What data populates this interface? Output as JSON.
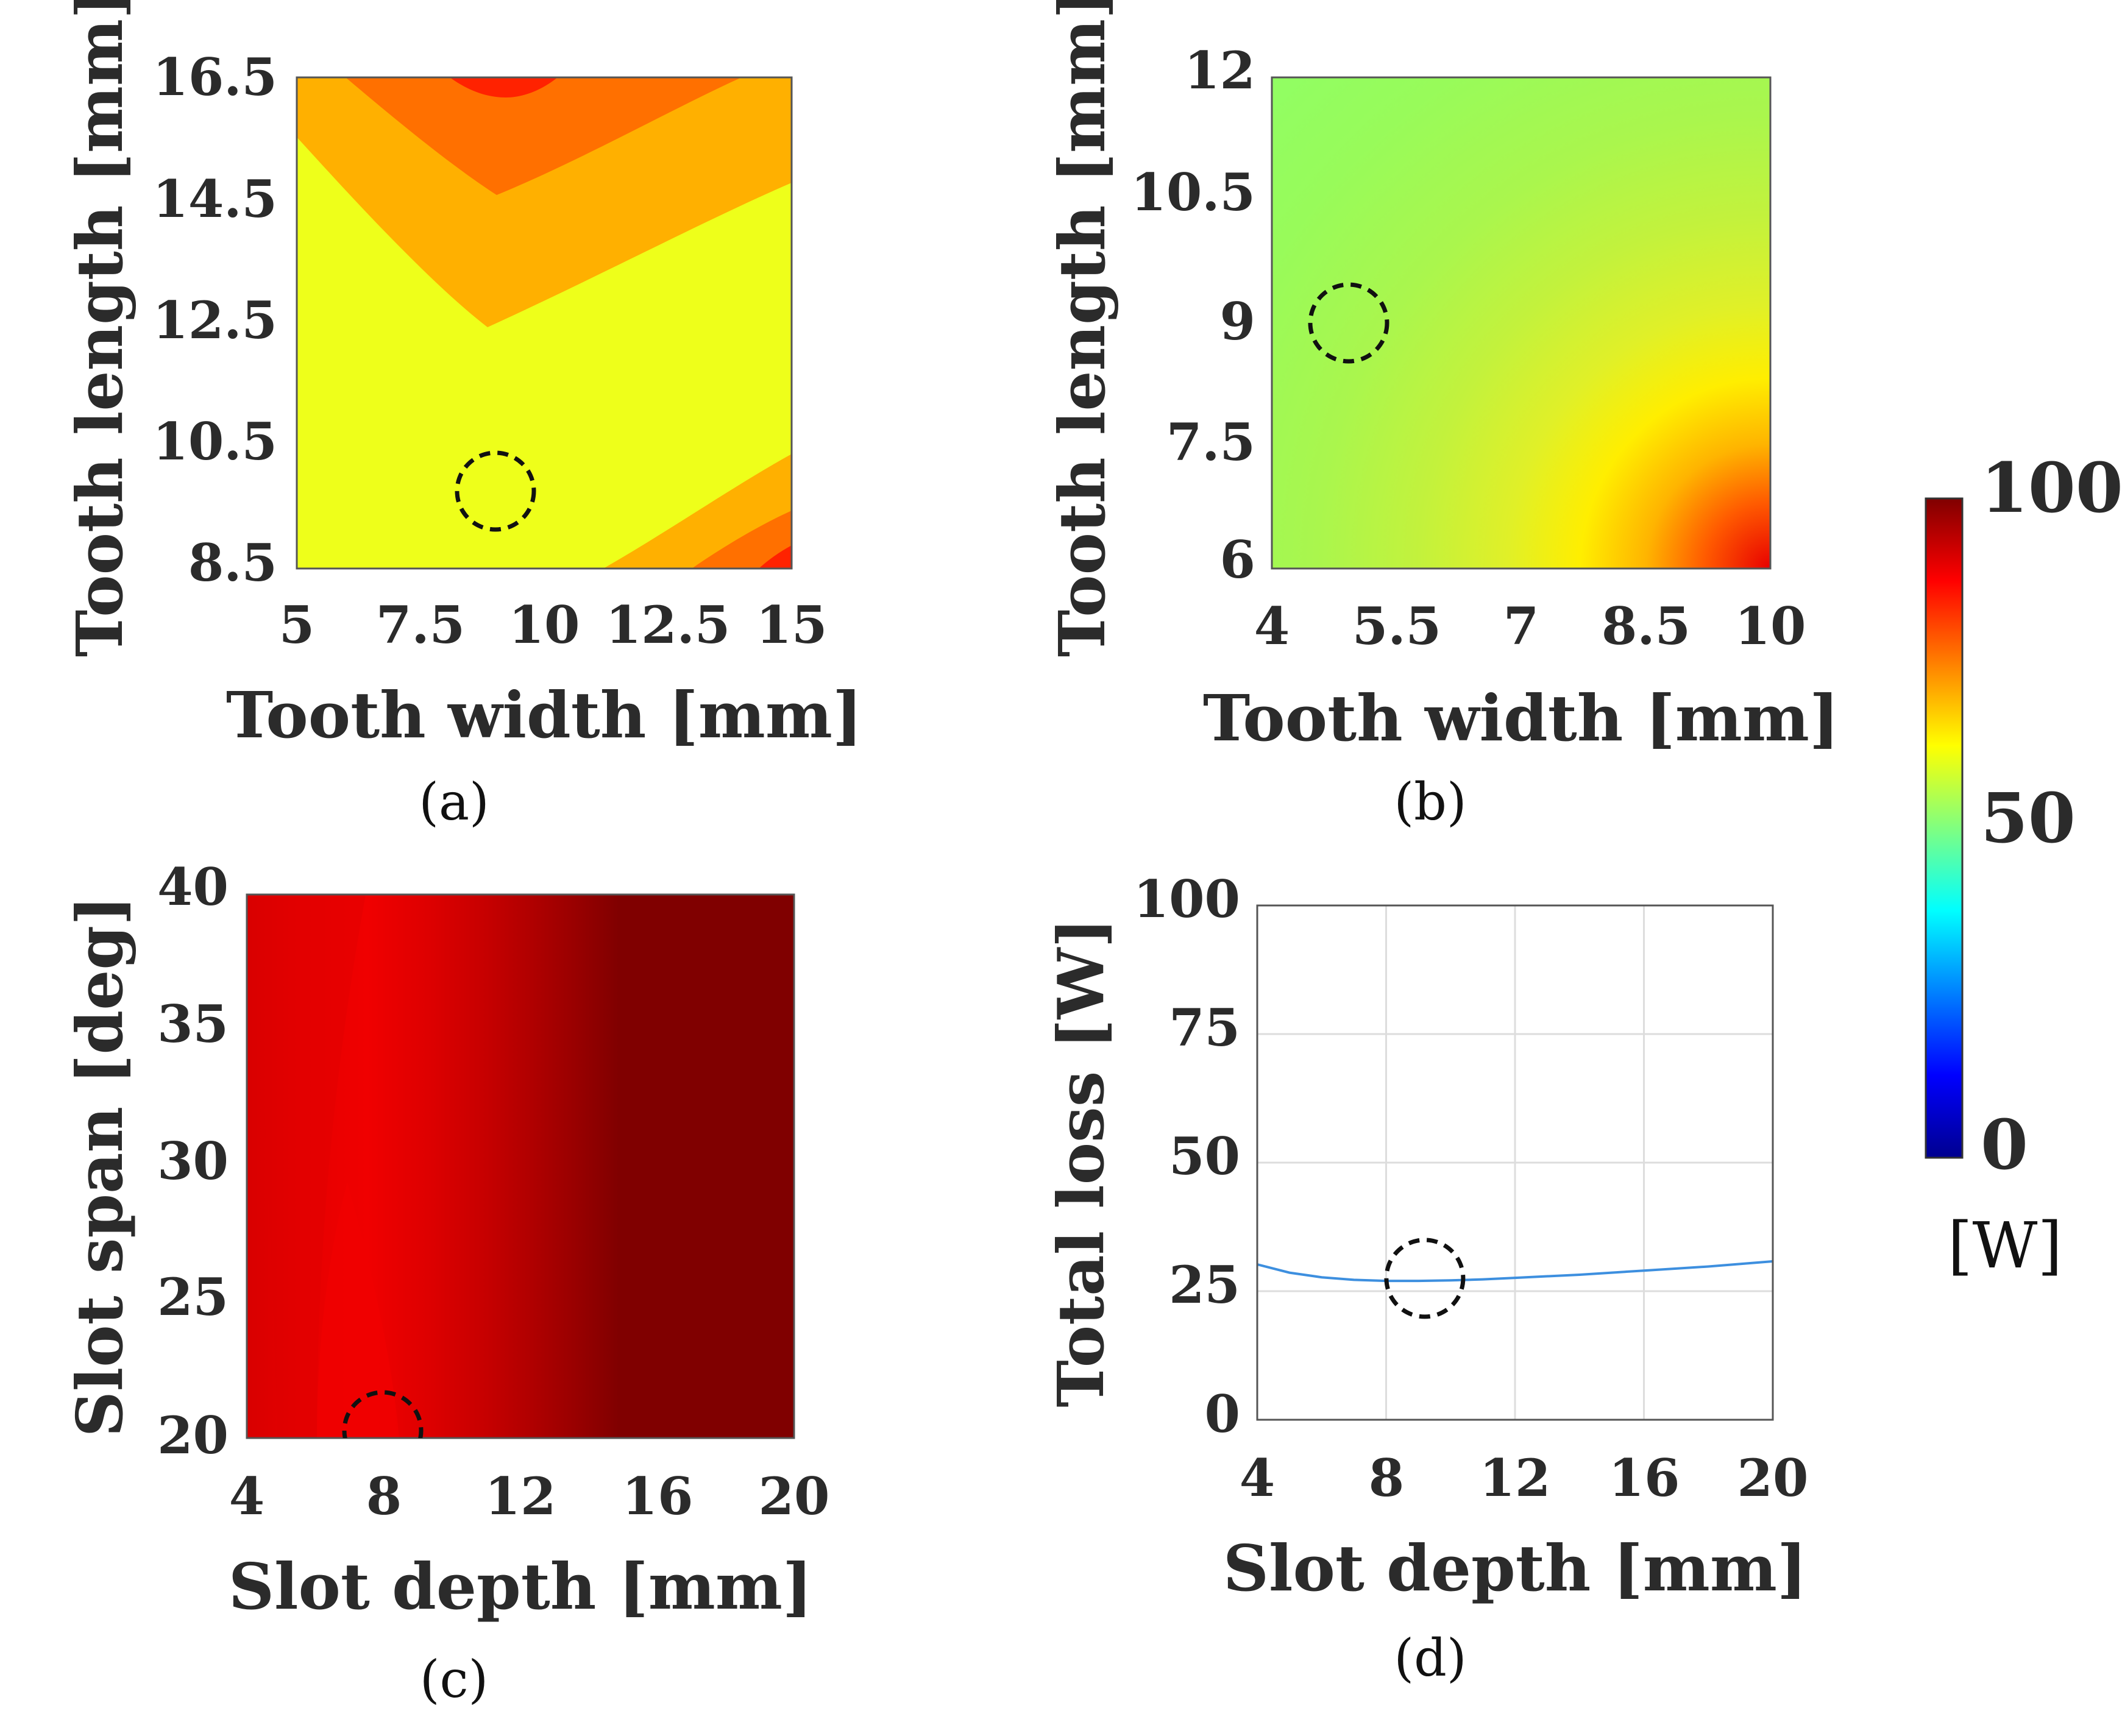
{
  "colorbar": {
    "ticks": [
      "100",
      "50",
      "0"
    ],
    "unit": "[W]",
    "range": [
      0,
      100
    ],
    "colors": [
      "#00008f",
      "#0000ff",
      "#0080ff",
      "#00ffff",
      "#80ff80",
      "#ffff00",
      "#ff8000",
      "#ff0000",
      "#800000"
    ]
  },
  "chart_data": [
    {
      "id": "a",
      "type": "heatmap",
      "caption": "(a)",
      "xlabel": "Tooth width [mm]",
      "ylabel": "Tooth length [mm]",
      "xlim": [
        5,
        15
      ],
      "ylim": [
        8.5,
        16.5
      ],
      "xticks": [
        "5",
        "7.5",
        "10",
        "12.5",
        "15"
      ],
      "yticks": [
        "16.5",
        "14.5",
        "12.5",
        "10.5",
        "8.5"
      ],
      "fill_colors": [
        "#eeff1a",
        "#ffb000",
        "#ff7000",
        "#ff2200"
      ],
      "contour_levels_W": [
        64,
        72,
        80,
        88
      ],
      "marker": {
        "x": 9,
        "y": 9.8
      }
    },
    {
      "id": "b",
      "type": "heatmap",
      "caption": "(b)",
      "xlabel": "Tooth width [mm]",
      "ylabel": "Tooth length [mm]",
      "xlim": [
        4,
        10
      ],
      "ylim": [
        6,
        12
      ],
      "xticks": [
        "4",
        "5.5",
        "7",
        "8.5",
        "10"
      ],
      "yticks": [
        "12",
        "10.5",
        "9",
        "7.5",
        "6"
      ],
      "fill_colors": [
        "#8fff66",
        "#98fb5a",
        "#aaf64d",
        "#c3f23c",
        "#e0f028",
        "#ffee00",
        "#ffb400",
        "#ff5a00",
        "#e80000"
      ],
      "marker": {
        "x": 5,
        "y": 9
      }
    },
    {
      "id": "c",
      "type": "heatmap",
      "caption": "(c)",
      "xlabel": "Slot depth [mm]",
      "ylabel": "Slot span [deg]",
      "xlim": [
        4,
        20
      ],
      "ylim": [
        20,
        40
      ],
      "xticks": [
        "4",
        "8",
        "12",
        "16",
        "20"
      ],
      "yticks": [
        "40",
        "35",
        "30",
        "25",
        "20"
      ],
      "fill_colors": [
        "#d80000",
        "#e60000",
        "#f00000",
        "#de0000",
        "#c80000",
        "#b00000",
        "#990000",
        "#800000"
      ],
      "marker": {
        "x": 8,
        "y": 20
      }
    },
    {
      "id": "d",
      "type": "line",
      "caption": "(d)",
      "xlabel": "Slot depth [mm]",
      "ylabel": "Total loss [W]",
      "xlim": [
        4,
        20
      ],
      "ylim": [
        0,
        100
      ],
      "xticks": [
        "4",
        "8",
        "12",
        "16",
        "20"
      ],
      "yticks": [
        "100",
        "75",
        "50",
        "25",
        "0"
      ],
      "grid": true,
      "series": [
        {
          "name": "Total loss",
          "color": "#3d8fdf",
          "x": [
            4,
            5,
            6,
            7,
            8,
            9,
            10,
            11,
            12,
            13,
            14,
            15,
            16,
            17,
            18,
            19,
            20
          ],
          "y": [
            30.2,
            28.6,
            27.7,
            27.2,
            27.0,
            27.0,
            27.1,
            27.3,
            27.6,
            27.9,
            28.2,
            28.6,
            29.0,
            29.4,
            29.8,
            30.3,
            30.8
          ]
        }
      ],
      "marker": {
        "x": 9.2,
        "y": 27.5
      }
    }
  ]
}
